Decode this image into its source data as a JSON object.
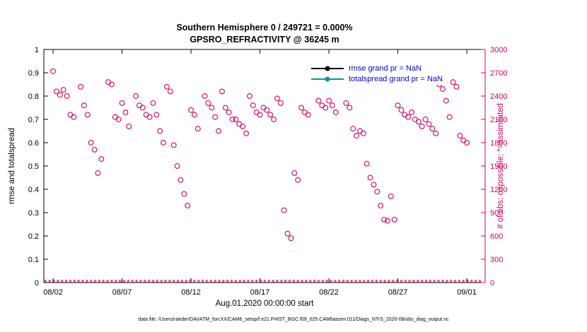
{
  "header": {
    "title_line1": "Southern Hemisphere 0 / 249721 = 0.000%",
    "title_line2": "GPSRO_REFRACTIVITY @ 36245 m"
  },
  "axes": {
    "left_label": "rmse and totalspread",
    "right_label": "# of obs: o=possible; *=assimilated",
    "x_label": "Aug.01,2020 00:00:00 start",
    "left_tick_values": [
      0,
      0.1,
      0.2,
      0.3,
      0.4,
      0.5,
      0.6,
      0.7,
      0.8,
      0.9,
      1
    ],
    "left_tick_labels": [
      "0",
      "0.1",
      "0.2",
      "0.3",
      "0.4",
      "0.5",
      "0.6",
      "0.7",
      "0.8",
      "0.9",
      "1"
    ],
    "right_tick_values": [
      0,
      300,
      600,
      900,
      1200,
      1500,
      1800,
      2100,
      2400,
      2700,
      3000
    ],
    "right_tick_labels": [
      "0",
      "300",
      "600",
      "900",
      "1200",
      "1500",
      "1800",
      "2100",
      "2400",
      "2700",
      "3000"
    ],
    "x_tick_labels": [
      "08/02",
      "08/07",
      "08/12",
      "08/17",
      "08/22",
      "08/27",
      "09/01"
    ],
    "x_tick_days": [
      1,
      6,
      11,
      16,
      21,
      26,
      31
    ]
  },
  "colors": {
    "obs_pink": "#cc0066",
    "axis_black": "#000000",
    "legend_text_blue": "#0000cc",
    "rmse_black": "#000000",
    "totalspread_teal": "#009999"
  },
  "legend": {
    "entries": [
      {
        "label": "rmse grand pr = NaN",
        "line_color": "#000000",
        "marker_color": "#000000",
        "text_color": "#0000cc"
      },
      {
        "label": "totalspread grand pr = NaN",
        "line_color": "#009999",
        "marker_color": "#009999",
        "text_color": "#0000cc"
      }
    ]
  },
  "footer": {
    "text": "data file: /Users/raeder/DAI/ATM_forcXX/CAM6_setup/f.e21.FHIST_BGC.f09_025.CAM6assim.011/Diags_NTrS_2020-08/obs_diag_output.nc"
  },
  "chart_data": {
    "type": "scatter",
    "title": "Southern Hemisphere 0 / 249721 = 0.000% | GPSRO_REFRACTIVITY @ 36245 m",
    "xlabel": "Aug.01,2020 00:00:00 start",
    "x_lim_days": [
      0.33,
      32.33
    ],
    "left_ylabel": "rmse and totalspread",
    "left_ylim": [
      0,
      1
    ],
    "right_ylabel": "# of obs: o=possible; *=assimilated",
    "right_ylim": [
      0,
      3000
    ],
    "grid": false,
    "legend_position": "top-right-inside",
    "series": [
      {
        "name": "rmse",
        "legend_label": "rmse grand pr = NaN",
        "color": "#000000",
        "note": "grand pr = NaN, no curve drawn",
        "x_days": [],
        "values": []
      },
      {
        "name": "totalspread",
        "legend_label": "totalspread grand pr = NaN",
        "color": "#009999",
        "note": "grand pr = NaN, no curve drawn",
        "x_days": [],
        "values": []
      },
      {
        "name": "possible_obs",
        "marker": "o",
        "color": "#cc0066",
        "axis": "right",
        "x_days": [
          1,
          1.25,
          1.5,
          1.75,
          2,
          2.25,
          2.5,
          3,
          3.25,
          3.5,
          3.75,
          4,
          4.25,
          4.5,
          5,
          5.25,
          5.5,
          5.75,
          6,
          6.25,
          6.5,
          7,
          7.25,
          7.5,
          7.75,
          8,
          8.25,
          8.5,
          8.75,
          9,
          9.25,
          9.5,
          9.75,
          10,
          10.25,
          10.5,
          10.75,
          11,
          11.25,
          11.5,
          12,
          12.25,
          12.5,
          12.75,
          13,
          13.25,
          13.5,
          13.75,
          14,
          14.25,
          14.5,
          14.75,
          15,
          15.25,
          15.5,
          15.75,
          16,
          16.25,
          16.5,
          16.75,
          17,
          17.25,
          17.5,
          17.75,
          18,
          18.25,
          18.5,
          18.75,
          19,
          19.25,
          19.5,
          20,
          20.25,
          20.5,
          20.75,
          21,
          21.25,
          21.5,
          22,
          22.25,
          22.5,
          22.75,
          23,
          23.25,
          23.5,
          23.75,
          24,
          24.25,
          24.5,
          24.75,
          25,
          25.25,
          25.5,
          25.75,
          26,
          26.25,
          26.5,
          26.75,
          27,
          27.25,
          27.5,
          27.75,
          28,
          28.25,
          28.5,
          28.75,
          29,
          29.25,
          29.5,
          29.75,
          30,
          30.25,
          30.5,
          30.75,
          31
        ],
        "counts": [
          2720,
          2460,
          2415,
          2480,
          2400,
          2160,
          2130,
          2520,
          2280,
          2160,
          1800,
          1710,
          1410,
          1590,
          2580,
          2550,
          2130,
          2100,
          2310,
          2190,
          2010,
          2400,
          2280,
          2250,
          2160,
          2130,
          2310,
          2160,
          1950,
          1800,
          2520,
          2460,
          1770,
          1500,
          1320,
          1140,
          990,
          2220,
          2160,
          1980,
          2400,
          2310,
          2250,
          2130,
          1950,
          2460,
          2250,
          2190,
          2100,
          2100,
          2040,
          2010,
          1920,
          2400,
          2280,
          2190,
          2160,
          2250,
          2220,
          2160,
          2100,
          2370,
          2310,
          930,
          630,
          570,
          1410,
          1320,
          2250,
          2190,
          2160,
          2580,
          2340,
          2280,
          2250,
          2340,
          2280,
          2190,
          2670,
          2310,
          2250,
          1980,
          1890,
          1950,
          1920,
          1530,
          1350,
          1260,
          1170,
          990,
          810,
          795,
          1110,
          810,
          2280,
          2220,
          2160,
          2130,
          2190,
          2100,
          2070,
          2010,
          2100,
          2040,
          1980,
          1920,
          2550,
          2490,
          2340,
          2130,
          2580,
          2520,
          1890,
          1830,
          1800
        ]
      },
      {
        "name": "assimilated_obs",
        "marker": "*",
        "color": "#cc0066",
        "axis": "right",
        "constant_count": 0,
        "x_start_day": 0.45,
        "x_end_day": 32.1,
        "x_step_day": 0.3
      }
    ]
  }
}
